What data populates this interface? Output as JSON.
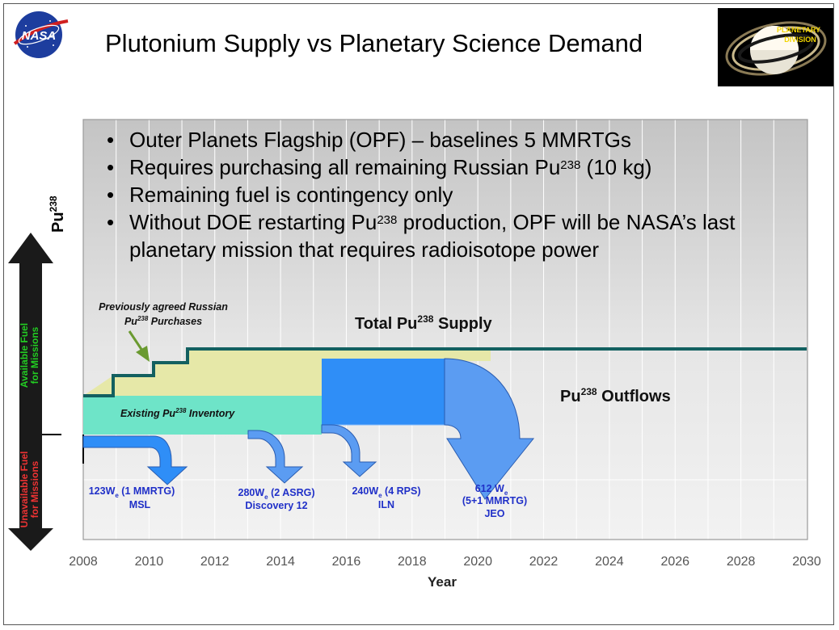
{
  "title": "Plutonium Supply vs Planetary Science Demand",
  "logos": {
    "nasa": "NASA",
    "planetary_division": [
      "PLANETARY",
      "DIVISION"
    ]
  },
  "bullets": [
    {
      "parts": [
        "Outer Planets Flagship (OPF) – baselines 5 MMRTGs"
      ]
    },
    {
      "parts": [
        "Requires purchasing all remaining Russian Pu",
        "238",
        " (10 kg)"
      ]
    },
    {
      "parts": [
        "Remaining fuel is contingency only"
      ]
    },
    {
      "parts": [
        "Without DOE restarting Pu",
        "238",
        " production, OPF will be NASA’s last planetary mission that requires radioisotope power"
      ]
    }
  ],
  "y_axis": {
    "label": "Pu",
    "label_sup": "238",
    "available": [
      "Available Fuel",
      "for Missions"
    ],
    "unavailable": [
      "Unavailable Fuel",
      "for Missions"
    ]
  },
  "x_axis": {
    "label": "Year",
    "ticks": [
      "2008",
      "2010",
      "2012",
      "2014",
      "2016",
      "2018",
      "2020",
      "2022",
      "2024",
      "2026",
      "2028",
      "2030"
    ]
  },
  "annotations": {
    "russian": [
      "Previously agreed Russian",
      "Pu",
      "238",
      " Purchases"
    ],
    "supply": [
      "Total Pu",
      "238",
      " Supply"
    ],
    "outflows": [
      "Pu",
      "238",
      " Outflows"
    ],
    "inventory": [
      "Existing Pu",
      "238",
      " Inventory"
    ]
  },
  "missions": [
    {
      "power": "123W",
      "sub": "e",
      "detail": " (1 MMRTG)",
      "name": "MSL"
    },
    {
      "power": "280W",
      "sub": "e",
      "detail": " (2 ASRG)",
      "name": "Discovery 12"
    },
    {
      "power": "240W",
      "sub": "e",
      "detail": " (4 RPS)",
      "name": "ILN"
    },
    {
      "power": "612 W",
      "sub": "e",
      "detail": "(5+1 MMRTG)",
      "name": "JEO"
    }
  ],
  "colors": {
    "supply_line": "#136060",
    "russian_fill": "#e6e8a8",
    "inventory_fill": "#6ee4c8",
    "outflow_blue": "#2f8ef7",
    "jeo_blue": "#5b9cf2",
    "mission_text": "#2030c8",
    "available_text": "#22cc22",
    "unavailable_text": "#ee3333",
    "arrow_green": "#6a9a30"
  }
}
